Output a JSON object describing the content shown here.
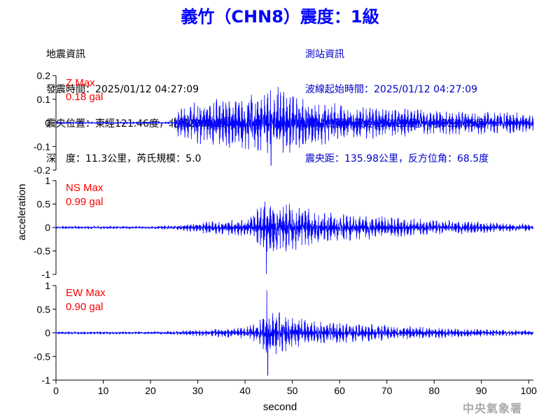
{
  "header": {
    "title": "義竹（CHN8）震度：1級"
  },
  "quake_info": {
    "heading": "地震資訊",
    "time": "發震時間：2025/01/12 04:27:09",
    "epicenter": "震央位置：東經121.46度，北緯23.80度",
    "depth": "深　度：11.3公里，芮氏規模：5.0"
  },
  "station_info": {
    "heading": "測站資訊",
    "wave_start": "波線起始時間：2025/01/12 04:27:09",
    "location": "測站位置：東經120.22度，北緯23.35度",
    "distance": "震央距：135.98公里，反方位角：68.5度"
  },
  "watermark": "中央氣象署",
  "chart_data": {
    "type": "line",
    "xlabel": "second",
    "ylabel": "acceleration",
    "xlim": [
      0,
      101
    ],
    "xticks": [
      0,
      10,
      20,
      30,
      40,
      50,
      60,
      70,
      80,
      90,
      100
    ],
    "color": "#0000ff",
    "panels": [
      {
        "name": "Z",
        "peak_label": "Z Max",
        "peak_value": "0.18 gal",
        "ylim": [
          -0.2,
          0.2
        ],
        "yticks": [
          "0.2",
          "0.1",
          "0",
          "-0.1",
          "-0.2"
        ],
        "envelope": {
          "t": [
            0,
            10,
            20,
            25,
            25.5,
            30,
            40,
            45,
            48,
            55,
            65,
            75,
            85,
            95,
            101
          ],
          "amp": [
            0.004,
            0.004,
            0.005,
            0.005,
            0.06,
            0.1,
            0.12,
            0.15,
            0.14,
            0.1,
            0.07,
            0.06,
            0.05,
            0.05,
            0.04
          ]
        },
        "peaks": [
          [
            47,
            0.152
          ],
          [
            45.5,
            -0.18
          ]
        ]
      },
      {
        "name": "NS",
        "peak_label": "NS Max",
        "peak_value": "0.99 gal",
        "ylim": [
          -1,
          1
        ],
        "yticks": [
          "1",
          "0.5",
          "0",
          "-0.5",
          "-1"
        ],
        "envelope": {
          "t": [
            0,
            20,
            26,
            30,
            40,
            43,
            45,
            50,
            55,
            65,
            75,
            85,
            95,
            101
          ],
          "amp": [
            0.03,
            0.03,
            0.06,
            0.12,
            0.2,
            0.45,
            0.6,
            0.55,
            0.35,
            0.28,
            0.2,
            0.15,
            0.1,
            0.08
          ]
        },
        "peaks": [
          [
            44.5,
            -0.99
          ],
          [
            44.2,
            0.55
          ]
        ]
      },
      {
        "name": "EW",
        "peak_label": "EW Max",
        "peak_value": "0.90 gal",
        "ylim": [
          -1,
          1
        ],
        "yticks": [
          "1",
          "0.5",
          "0",
          "-0.5",
          "-1"
        ],
        "envelope": {
          "t": [
            0,
            20,
            26,
            30,
            40,
            43,
            44.5,
            50,
            55,
            65,
            75,
            85,
            95,
            101
          ],
          "amp": [
            0.03,
            0.03,
            0.05,
            0.08,
            0.12,
            0.25,
            0.5,
            0.4,
            0.25,
            0.2,
            0.15,
            0.1,
            0.07,
            0.06
          ]
        },
        "peaks": [
          [
            44.6,
            0.9
          ],
          [
            44.8,
            -0.9
          ]
        ]
      }
    ]
  }
}
